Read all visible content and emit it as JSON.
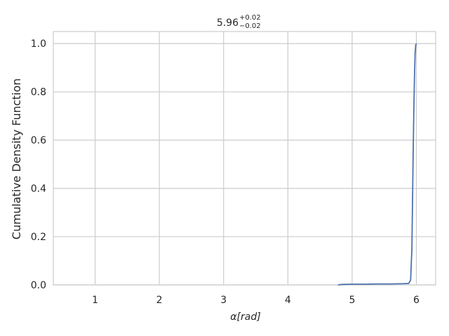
{
  "chart_data": {
    "type": "line",
    "title": {
      "value": "5.96",
      "upper": "+0.02",
      "lower": "−0.02"
    },
    "xlabel": {
      "symbol": "α",
      "unit": "[rad]"
    },
    "ylabel": "Cumulative Density Function",
    "xlim": [
      0.35,
      6.3
    ],
    "ylim": [
      0.0,
      1.05
    ],
    "xticks": [
      1,
      2,
      3,
      4,
      5,
      6
    ],
    "yticks": [
      "0.0",
      "0.2",
      "0.4",
      "0.6",
      "0.8",
      "1.0"
    ],
    "grid": true,
    "line_color": "#4c72b0",
    "series": [
      {
        "x": [
          4.78,
          4.85,
          5.0,
          5.2,
          5.4,
          5.6,
          5.8,
          5.88,
          5.91,
          5.93,
          5.94,
          5.95,
          5.96,
          5.97,
          5.98,
          5.99,
          6.0
        ],
        "y": [
          0.0,
          0.002,
          0.003,
          0.003,
          0.004,
          0.004,
          0.005,
          0.006,
          0.02,
          0.15,
          0.35,
          0.55,
          0.72,
          0.86,
          0.96,
          0.995,
          1.0
        ]
      }
    ]
  }
}
